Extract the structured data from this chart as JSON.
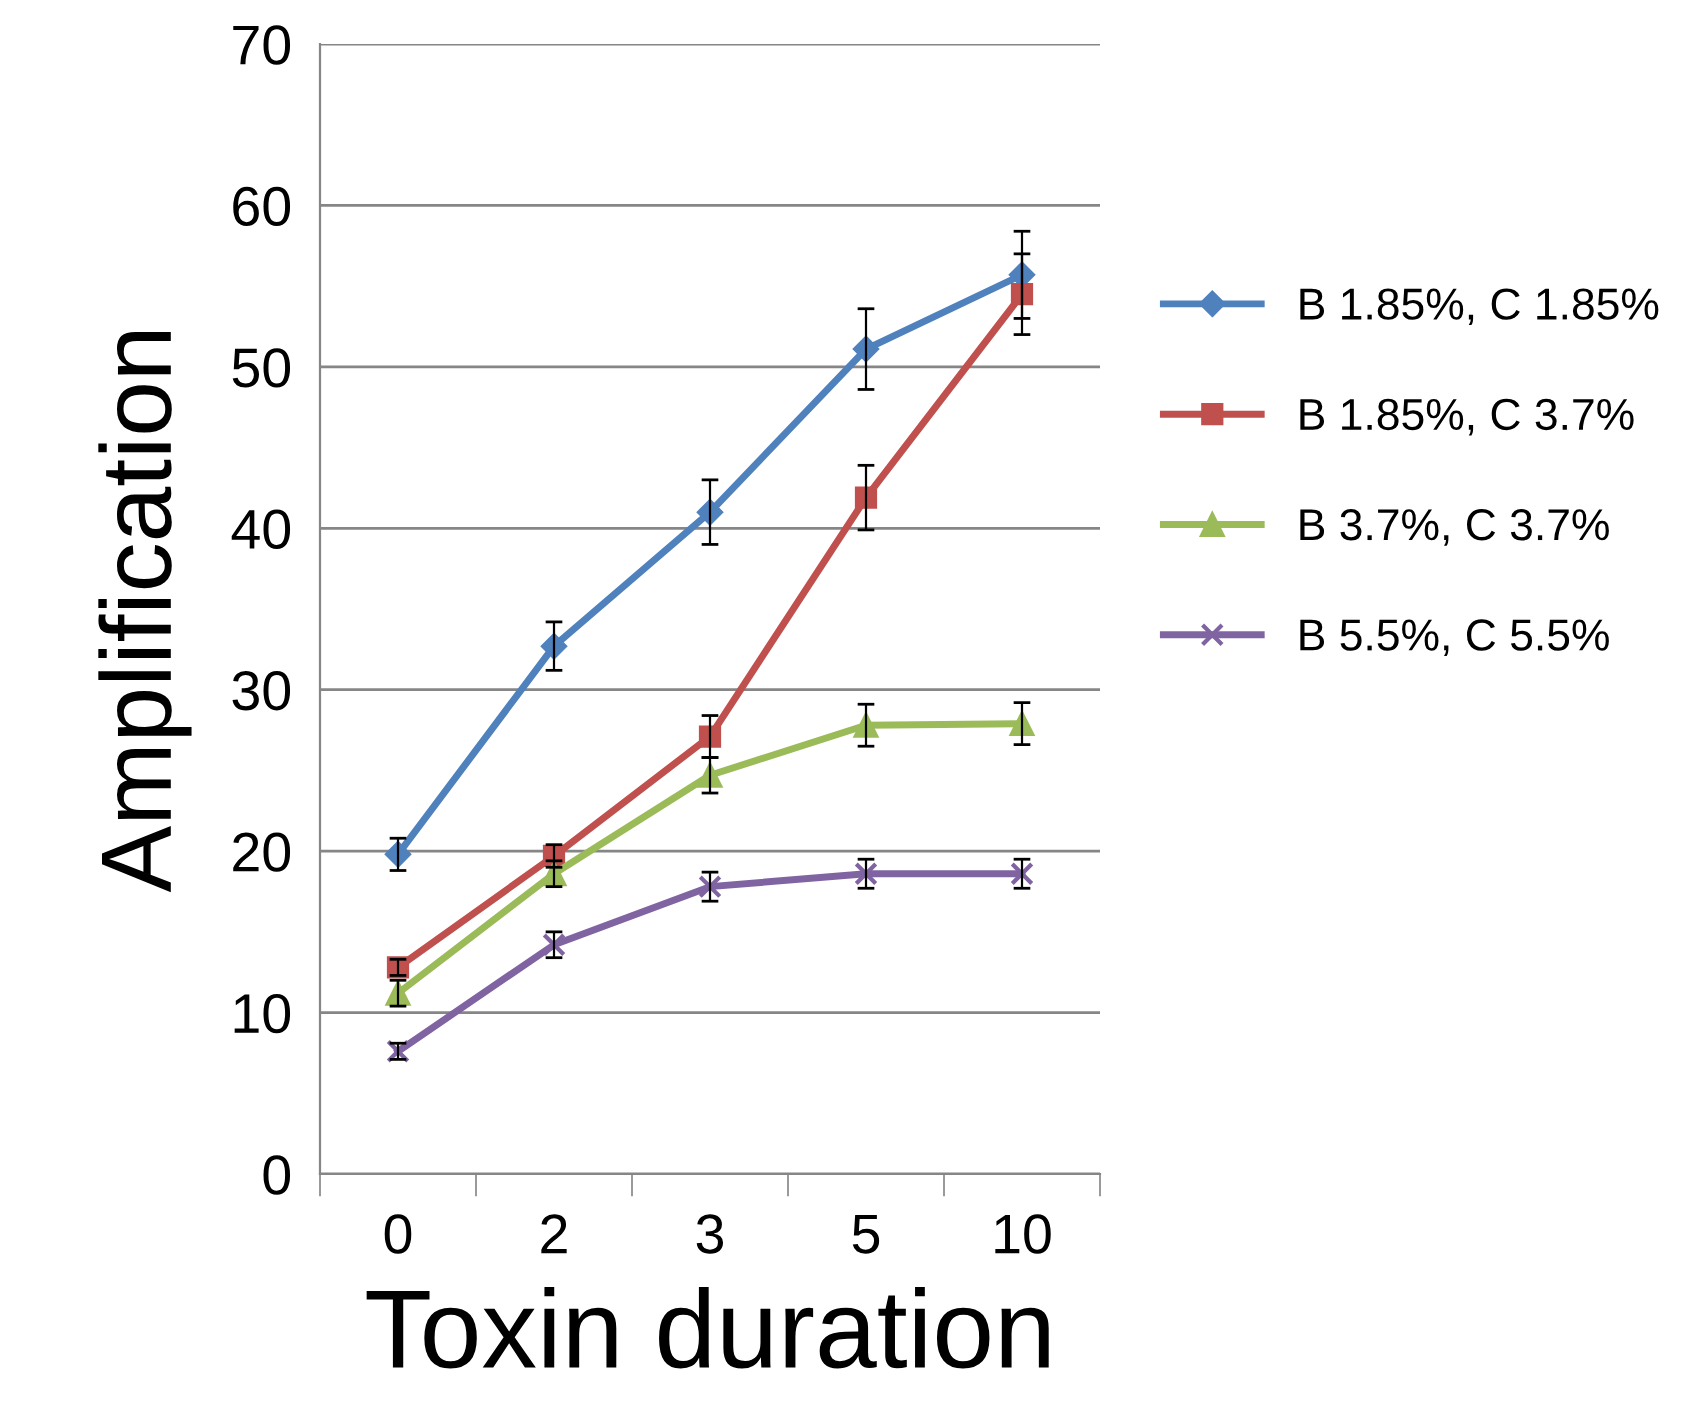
{
  "chart_data": {
    "type": "line",
    "xlabel": "Toxin duration",
    "ylabel": "Amplification",
    "categories": [
      "0",
      "2",
      "3",
      "5",
      "10"
    ],
    "series": [
      {
        "name": "B 1.85%, C 1.85%",
        "color": "#4f81bd",
        "marker": "diamond",
        "values": [
          19.8,
          32.7,
          41.0,
          51.1,
          55.7
        ],
        "errors": [
          1.0,
          1.5,
          2.0,
          2.5,
          2.7
        ]
      },
      {
        "name": "B 1.85%, C 3.7%",
        "color": "#c0504d",
        "marker": "square",
        "values": [
          12.8,
          19.7,
          27.1,
          41.9,
          54.5
        ],
        "errors": [
          0.5,
          0.7,
          1.3,
          2.0,
          2.5
        ]
      },
      {
        "name": "B 3.7%, C 3.7%",
        "color": "#9bbb59",
        "marker": "triangle",
        "values": [
          11.2,
          18.6,
          24.7,
          27.8,
          27.9
        ],
        "errors": [
          0.8,
          0.8,
          1.1,
          1.3,
          1.3
        ]
      },
      {
        "name": "B 5.5%, C 5.5%",
        "color": "#8064a2",
        "marker": "cross",
        "values": [
          7.6,
          14.2,
          17.8,
          18.6,
          18.6
        ],
        "errors": [
          0.5,
          0.8,
          0.9,
          0.9,
          0.9
        ]
      }
    ],
    "ylim": [
      0,
      70
    ],
    "yticks": [
      0,
      10,
      20,
      30,
      40,
      50,
      60,
      70
    ],
    "grid": "y",
    "legend": "right"
  }
}
